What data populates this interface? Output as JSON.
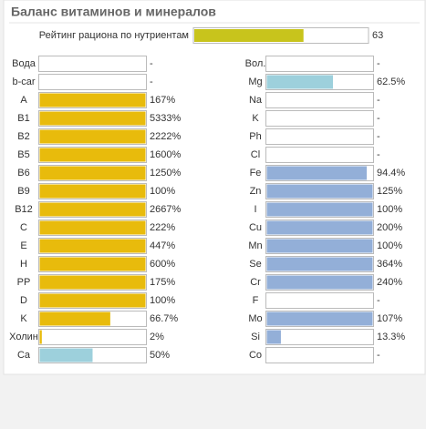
{
  "title": "Баланс витаминов и минералов",
  "rating": {
    "label": "Рейтинг рациона по нутриентам",
    "value": 63,
    "color": "#c8c41c"
  },
  "columns": [
    {
      "rows": [
        {
          "name": "Вода",
          "value": null,
          "value_label": "-"
        },
        {
          "name": "b-car",
          "value": null,
          "value_label": "-"
        },
        {
          "name": "A",
          "value": 167,
          "value_label": "167%",
          "color": "#e8bb0c"
        },
        {
          "name": "B1",
          "value": 5333,
          "value_label": "5333%",
          "color": "#e8bb0c"
        },
        {
          "name": "B2",
          "value": 2222,
          "value_label": "2222%",
          "color": "#e8bb0c"
        },
        {
          "name": "B5",
          "value": 1600,
          "value_label": "1600%",
          "color": "#e8bb0c"
        },
        {
          "name": "B6",
          "value": 1250,
          "value_label": "1250%",
          "color": "#e8bb0c"
        },
        {
          "name": "B9",
          "value": 100,
          "value_label": "100%",
          "color": "#e8bb0c"
        },
        {
          "name": "B12",
          "value": 2667,
          "value_label": "2667%",
          "color": "#e8bb0c"
        },
        {
          "name": "C",
          "value": 222,
          "value_label": "222%",
          "color": "#e8bb0c"
        },
        {
          "name": "E",
          "value": 447,
          "value_label": "447%",
          "color": "#e8bb0c"
        },
        {
          "name": "H",
          "value": 600,
          "value_label": "600%",
          "color": "#e8bb0c"
        },
        {
          "name": "PP",
          "value": 175,
          "value_label": "175%",
          "color": "#e8bb0c"
        },
        {
          "name": "D",
          "value": 100,
          "value_label": "100%",
          "color": "#e8bb0c"
        },
        {
          "name": "K",
          "value": 66.7,
          "value_label": "66.7%",
          "color": "#e8bb0c"
        },
        {
          "name": "Холин",
          "value": 2,
          "value_label": "2%",
          "color": "#e8bb0c"
        },
        {
          "name": "Ca",
          "value": 50,
          "value_label": "50%",
          "color": "#9dd0dc"
        }
      ]
    },
    {
      "rows": [
        {
          "name": "Вол.",
          "value": null,
          "value_label": "-"
        },
        {
          "name": "Mg",
          "value": 62.5,
          "value_label": "62.5%",
          "color": "#9dd0dc"
        },
        {
          "name": "Na",
          "value": null,
          "value_label": "-"
        },
        {
          "name": "K",
          "value": null,
          "value_label": "-"
        },
        {
          "name": "Ph",
          "value": null,
          "value_label": "-"
        },
        {
          "name": "Cl",
          "value": null,
          "value_label": "-"
        },
        {
          "name": "Fe",
          "value": 94.4,
          "value_label": "94.4%",
          "color": "#93afd8"
        },
        {
          "name": "Zn",
          "value": 125,
          "value_label": "125%",
          "color": "#93afd8"
        },
        {
          "name": "I",
          "value": 100,
          "value_label": "100%",
          "color": "#93afd8"
        },
        {
          "name": "Cu",
          "value": 200,
          "value_label": "200%",
          "color": "#93afd8"
        },
        {
          "name": "Mn",
          "value": 100,
          "value_label": "100%",
          "color": "#93afd8"
        },
        {
          "name": "Se",
          "value": 364,
          "value_label": "364%",
          "color": "#93afd8"
        },
        {
          "name": "Cr",
          "value": 240,
          "value_label": "240%",
          "color": "#93afd8"
        },
        {
          "name": "F",
          "value": null,
          "value_label": "-"
        },
        {
          "name": "Mo",
          "value": 107,
          "value_label": "107%",
          "color": "#93afd8"
        },
        {
          "name": "Si",
          "value": 13.3,
          "value_label": "13.3%",
          "color": "#93afd8"
        },
        {
          "name": "Co",
          "value": null,
          "value_label": "-"
        }
      ]
    }
  ]
}
